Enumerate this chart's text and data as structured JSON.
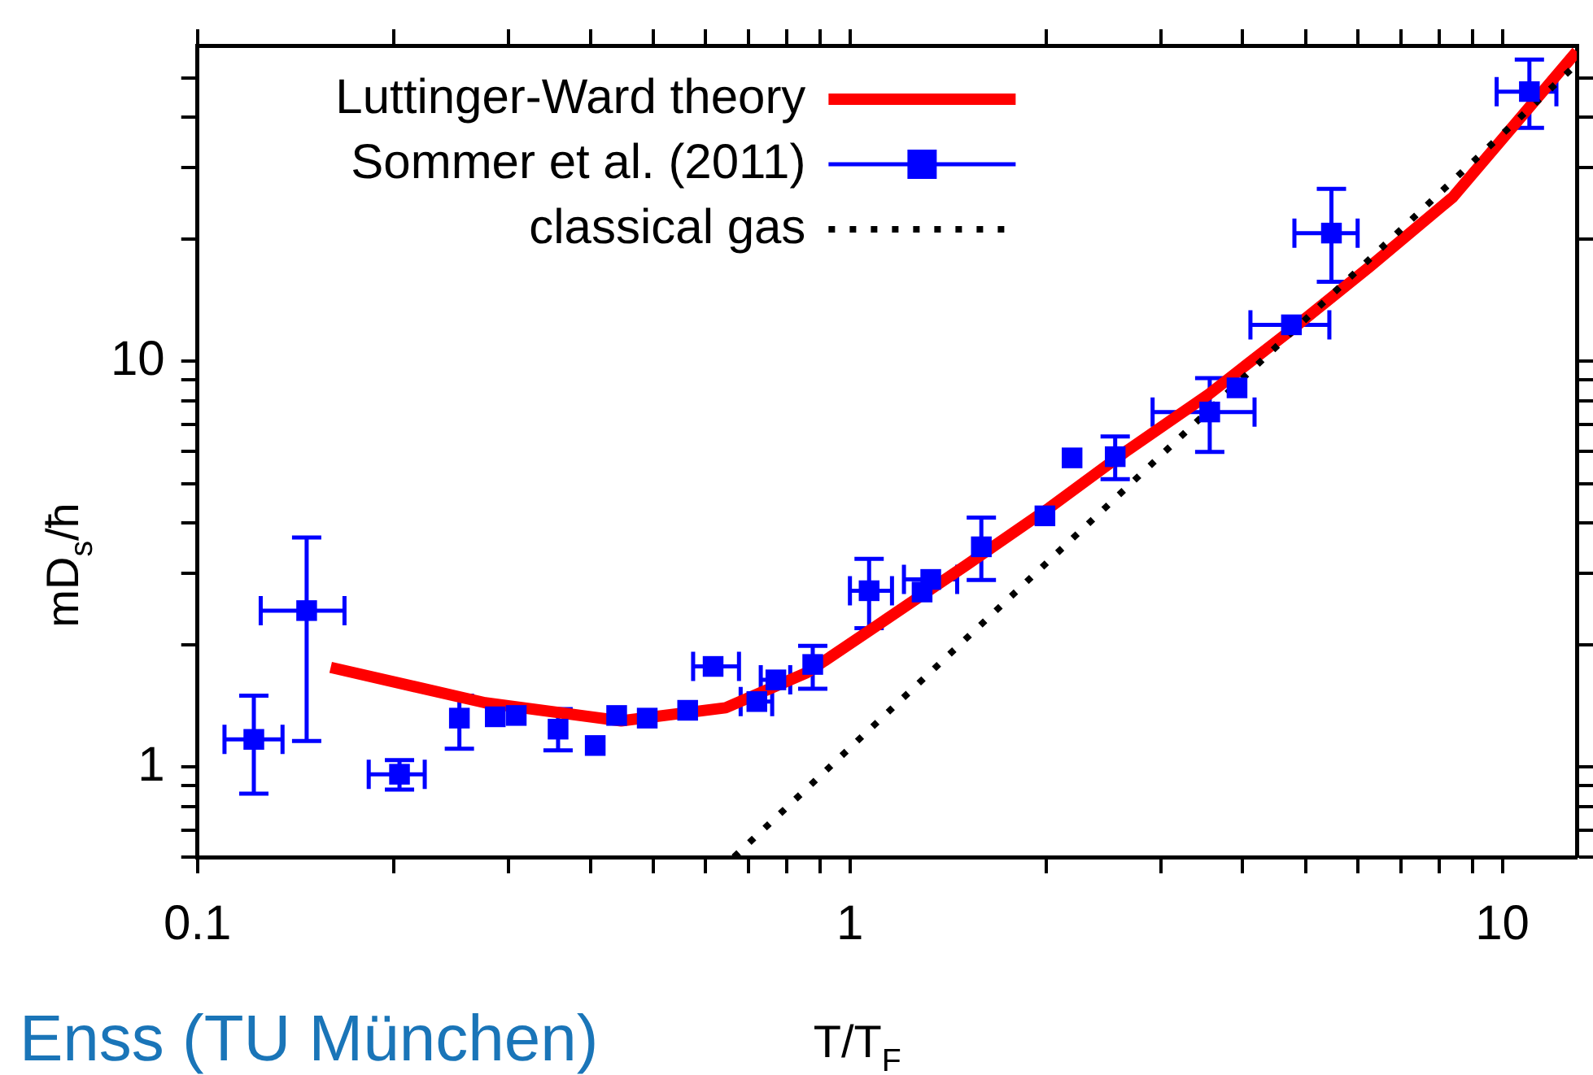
{
  "chart_data": {
    "type": "scatter",
    "xlabel": "T/T$_{F}$",
    "ylabel": "mD$_{s}$/ħ",
    "log": "xy",
    "xlim": [
      0.1,
      13
    ],
    "ylim": [
      0.6,
      60
    ],
    "xticks": [
      0.1,
      {
        "value": 0.2,
        "label": null
      },
      {
        "value": 0.3,
        "label": null
      },
      {
        "value": 0.4,
        "label": null
      },
      {
        "value": 0.5,
        "label": null
      },
      {
        "value": 0.6,
        "label": null
      },
      {
        "value": 0.7,
        "label": null
      },
      {
        "value": 0.8,
        "label": null
      },
      {
        "value": 0.9,
        "label": null
      },
      1,
      {
        "value": 2,
        "label": null
      },
      {
        "value": 3,
        "label": null
      },
      {
        "value": 4,
        "label": null
      },
      {
        "value": 5,
        "label": null
      },
      {
        "value": 6,
        "label": null
      },
      {
        "value": 7,
        "label": null
      },
      {
        "value": 8,
        "label": null
      },
      {
        "value": 9,
        "label": null
      },
      10
    ],
    "yticks": [
      {
        "value": 0.6,
        "label": null
      },
      {
        "value": 0.7,
        "label": null
      },
      {
        "value": 0.8,
        "label": null
      },
      {
        "value": 0.9,
        "label": null
      },
      1,
      {
        "value": 2,
        "label": null
      },
      {
        "value": 3,
        "label": null
      },
      {
        "value": 4,
        "label": null
      },
      {
        "value": 5,
        "label": null
      },
      {
        "value": 6,
        "label": null
      },
      {
        "value": 7,
        "label": null
      },
      {
        "value": 8,
        "label": null
      },
      {
        "value": 9,
        "label": null
      },
      10,
      {
        "value": 20,
        "label": null
      },
      {
        "value": 30,
        "label": null
      },
      {
        "value": 40,
        "label": null
      },
      {
        "value": 50,
        "label": null
      }
    ],
    "legend": "top",
    "annotations": [
      "Enss (TU München)"
    ],
    "series": [
      {
        "name": "Luttinger-Ward theory",
        "type": "line",
        "color": "#ff0000",
        "marker": "none",
        "line_style": "solid",
        "x": [
          0.16,
          0.276,
          0.446,
          0.645,
          0.86,
          1.14,
          1.51,
          2.02,
          2.67,
          3.55,
          4.7,
          6.26,
          8.4,
          13
        ],
        "values": [
          1.76,
          1.44,
          1.3,
          1.4,
          1.71,
          2.32,
          3.15,
          4.35,
          6.05,
          8.3,
          11.8,
          17.1,
          25.4,
          58
        ]
      },
      {
        "name": "Sommer et al. (2011)",
        "color": "#0000ff",
        "marker": "square",
        "x": [
          0.122,
          0.147,
          0.204,
          0.252,
          0.286,
          0.308,
          0.357,
          0.407,
          0.439,
          0.489,
          0.564,
          0.617,
          0.72,
          0.77,
          0.877,
          1.07,
          1.29,
          1.33,
          1.59,
          1.99,
          2.19,
          2.55,
          3.56,
          3.92,
          4.75,
          5.47,
          11.0
        ],
        "values": [
          1.17,
          2.43,
          0.96,
          1.32,
          1.33,
          1.34,
          1.24,
          1.13,
          1.34,
          1.32,
          1.38,
          1.77,
          1.45,
          1.64,
          1.79,
          2.72,
          2.7,
          2.9,
          3.49,
          4.16,
          5.78,
          5.82,
          7.5,
          8.6,
          12.3,
          20.7,
          46.2
        ],
        "errors": [
          [
            0.86,
            1.5
          ],
          [
            1.16,
            3.68
          ],
          [
            0.88,
            1.04
          ],
          [
            1.11,
            1.5
          ],
          null,
          null,
          [
            1.1,
            1.39
          ],
          null,
          null,
          null,
          null,
          null,
          null,
          null,
          [
            1.56,
            1.99
          ],
          [
            2.2,
            3.26
          ],
          null,
          null,
          [
            2.89,
            4.12
          ],
          null,
          null,
          [
            5.12,
            6.53
          ],
          [
            5.98,
            9.09
          ],
          null,
          null,
          [
            15.7,
            26.6
          ],
          [
            37.6,
            55.4
          ]
        ],
        "xerrors": [
          [
            0.11,
            0.135
          ],
          [
            0.125,
            0.168
          ],
          [
            0.183,
            0.223
          ],
          null,
          null,
          null,
          null,
          null,
          null,
          null,
          null,
          [
            0.575,
            0.676
          ],
          [
            0.68,
            0.76
          ],
          [
            0.73,
            0.81
          ],
          null,
          [
            1.0,
            1.16
          ],
          null,
          [
            1.21,
            1.46
          ],
          null,
          null,
          null,
          null,
          [
            2.91,
            4.17
          ],
          null,
          [
            4.11,
            5.43
          ],
          [
            4.8,
            6.0
          ],
          [
            9.8,
            12.1
          ]
        ]
      },
      {
        "name": "classical gas",
        "type": "line",
        "color": "#000000",
        "marker": "none",
        "line_style": "dotted",
        "x": [
          0.664,
          13
        ],
        "values": [
          0.6,
          54
        ]
      }
    ]
  }
}
